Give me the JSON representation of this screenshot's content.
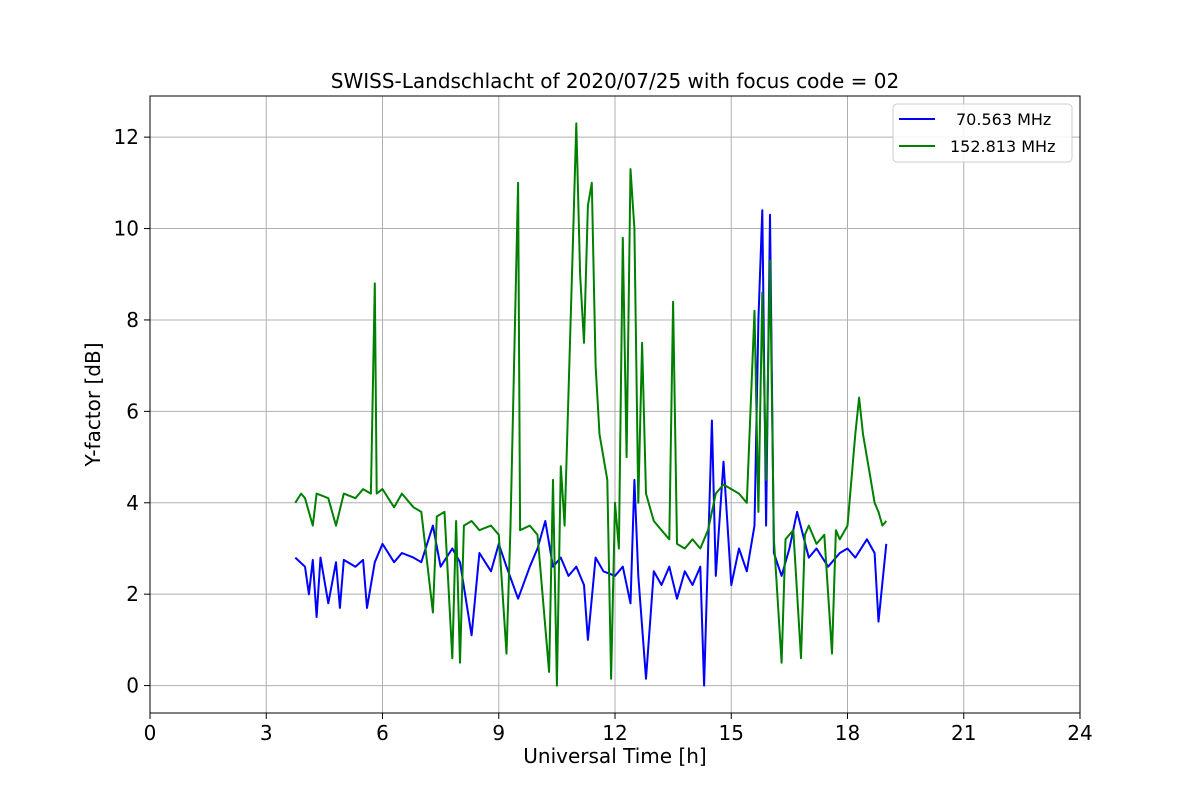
{
  "chart_data": {
    "type": "line",
    "title": "SWISS-Landschlacht of 2020/07/25 with focus code = 02",
    "xlabel": "Universal Time [h]",
    "ylabel": "Y-factor [dB]",
    "xlim": [
      0,
      24
    ],
    "ylim": [
      -0.6,
      12.9
    ],
    "xticks": [
      0,
      3,
      6,
      9,
      12,
      15,
      18,
      21,
      24
    ],
    "yticks": [
      0,
      2,
      4,
      6,
      8,
      10,
      12
    ],
    "grid": true,
    "legend_position": "top-right",
    "series": [
      {
        "name": "70.563 MHz",
        "color": "#0000ff",
        "points": [
          [
            3.75,
            2.8
          ],
          [
            4.0,
            2.6
          ],
          [
            4.1,
            2.0
          ],
          [
            4.2,
            2.75
          ],
          [
            4.3,
            1.5
          ],
          [
            4.4,
            2.8
          ],
          [
            4.6,
            1.8
          ],
          [
            4.8,
            2.7
          ],
          [
            4.9,
            1.7
          ],
          [
            5.0,
            2.75
          ],
          [
            5.3,
            2.6
          ],
          [
            5.5,
            2.75
          ],
          [
            5.6,
            1.7
          ],
          [
            5.8,
            2.7
          ],
          [
            6.0,
            3.1
          ],
          [
            6.3,
            2.7
          ],
          [
            6.5,
            2.9
          ],
          [
            6.8,
            2.8
          ],
          [
            7.0,
            2.7
          ],
          [
            7.3,
            3.5
          ],
          [
            7.5,
            2.6
          ],
          [
            7.8,
            3.0
          ],
          [
            8.0,
            2.7
          ],
          [
            8.3,
            1.1
          ],
          [
            8.5,
            2.9
          ],
          [
            8.8,
            2.5
          ],
          [
            9.0,
            3.1
          ],
          [
            9.2,
            2.6
          ],
          [
            9.5,
            1.9
          ],
          [
            9.8,
            2.6
          ],
          [
            10.0,
            3.0
          ],
          [
            10.2,
            3.6
          ],
          [
            10.4,
            2.6
          ],
          [
            10.6,
            2.8
          ],
          [
            10.8,
            2.4
          ],
          [
            11.0,
            2.6
          ],
          [
            11.2,
            2.2
          ],
          [
            11.3,
            1.0
          ],
          [
            11.5,
            2.8
          ],
          [
            11.7,
            2.5
          ],
          [
            12.0,
            2.4
          ],
          [
            12.2,
            2.6
          ],
          [
            12.4,
            1.8
          ],
          [
            12.5,
            4.5
          ],
          [
            12.6,
            2.4
          ],
          [
            12.8,
            0.15
          ],
          [
            13.0,
            2.5
          ],
          [
            13.2,
            2.2
          ],
          [
            13.4,
            2.6
          ],
          [
            13.6,
            1.9
          ],
          [
            13.8,
            2.5
          ],
          [
            14.0,
            2.2
          ],
          [
            14.2,
            2.6
          ],
          [
            14.3,
            0.0
          ],
          [
            14.5,
            5.8
          ],
          [
            14.6,
            2.4
          ],
          [
            14.8,
            4.9
          ],
          [
            15.0,
            2.2
          ],
          [
            15.2,
            3.0
          ],
          [
            15.4,
            2.5
          ],
          [
            15.6,
            3.5
          ],
          [
            15.7,
            8.0
          ],
          [
            15.8,
            10.4
          ],
          [
            15.9,
            3.5
          ],
          [
            16.0,
            10.3
          ],
          [
            16.1,
            2.9
          ],
          [
            16.3,
            2.4
          ],
          [
            16.5,
            3.0
          ],
          [
            16.7,
            3.8
          ],
          [
            17.0,
            2.8
          ],
          [
            17.2,
            3.0
          ],
          [
            17.5,
            2.6
          ],
          [
            17.8,
            2.9
          ],
          [
            18.0,
            3.0
          ],
          [
            18.2,
            2.8
          ],
          [
            18.5,
            3.2
          ],
          [
            18.7,
            2.9
          ],
          [
            18.8,
            1.4
          ],
          [
            19.0,
            3.1
          ]
        ]
      },
      {
        "name": "152.813 MHz",
        "color": "#008000",
        "points": [
          [
            3.75,
            4.0
          ],
          [
            3.9,
            4.2
          ],
          [
            4.0,
            4.1
          ],
          [
            4.2,
            3.5
          ],
          [
            4.3,
            4.2
          ],
          [
            4.6,
            4.1
          ],
          [
            4.8,
            3.5
          ],
          [
            5.0,
            4.2
          ],
          [
            5.3,
            4.1
          ],
          [
            5.5,
            4.3
          ],
          [
            5.7,
            4.2
          ],
          [
            5.8,
            8.8
          ],
          [
            5.85,
            4.2
          ],
          [
            6.0,
            4.3
          ],
          [
            6.3,
            3.9
          ],
          [
            6.5,
            4.2
          ],
          [
            6.8,
            3.9
          ],
          [
            7.0,
            3.8
          ],
          [
            7.3,
            1.6
          ],
          [
            7.4,
            3.7
          ],
          [
            7.6,
            3.8
          ],
          [
            7.8,
            0.6
          ],
          [
            7.9,
            3.6
          ],
          [
            8.0,
            0.5
          ],
          [
            8.1,
            3.5
          ],
          [
            8.3,
            3.6
          ],
          [
            8.5,
            3.4
          ],
          [
            8.8,
            3.5
          ],
          [
            9.0,
            3.3
          ],
          [
            9.2,
            0.7
          ],
          [
            9.3,
            3.4
          ],
          [
            9.5,
            11.0
          ],
          [
            9.55,
            3.4
          ],
          [
            9.8,
            3.5
          ],
          [
            10.0,
            3.3
          ],
          [
            10.3,
            0.3
          ],
          [
            10.4,
            4.5
          ],
          [
            10.5,
            0.0
          ],
          [
            10.6,
            4.8
          ],
          [
            10.7,
            3.5
          ],
          [
            10.9,
            9.3
          ],
          [
            11.0,
            12.3
          ],
          [
            11.1,
            9.0
          ],
          [
            11.2,
            7.5
          ],
          [
            11.3,
            10.5
          ],
          [
            11.4,
            11.0
          ],
          [
            11.5,
            7.0
          ],
          [
            11.6,
            5.5
          ],
          [
            11.8,
            4.5
          ],
          [
            11.9,
            0.15
          ],
          [
            12.0,
            4.0
          ],
          [
            12.1,
            3.0
          ],
          [
            12.2,
            9.8
          ],
          [
            12.3,
            5.0
          ],
          [
            12.4,
            11.3
          ],
          [
            12.5,
            10.0
          ],
          [
            12.6,
            4.0
          ],
          [
            12.7,
            7.5
          ],
          [
            12.8,
            4.2
          ],
          [
            13.0,
            3.6
          ],
          [
            13.2,
            3.4
          ],
          [
            13.4,
            3.2
          ],
          [
            13.5,
            8.4
          ],
          [
            13.6,
            3.1
          ],
          [
            13.8,
            3.0
          ],
          [
            14.0,
            3.2
          ],
          [
            14.2,
            3.0
          ],
          [
            14.4,
            3.4
          ],
          [
            14.6,
            4.2
          ],
          [
            14.8,
            4.4
          ],
          [
            15.0,
            4.3
          ],
          [
            15.2,
            4.2
          ],
          [
            15.4,
            4.0
          ],
          [
            15.6,
            8.2
          ],
          [
            15.7,
            3.8
          ],
          [
            15.8,
            8.6
          ],
          [
            15.9,
            4.5
          ],
          [
            16.0,
            9.3
          ],
          [
            16.1,
            3.2
          ],
          [
            16.3,
            0.5
          ],
          [
            16.4,
            3.2
          ],
          [
            16.6,
            3.4
          ],
          [
            16.8,
            0.6
          ],
          [
            16.9,
            3.3
          ],
          [
            17.0,
            3.5
          ],
          [
            17.2,
            3.1
          ],
          [
            17.4,
            3.3
          ],
          [
            17.6,
            0.7
          ],
          [
            17.7,
            3.4
          ],
          [
            17.8,
            3.2
          ],
          [
            18.0,
            3.5
          ],
          [
            18.1,
            4.5
          ],
          [
            18.2,
            5.5
          ],
          [
            18.3,
            6.3
          ],
          [
            18.4,
            5.5
          ],
          [
            18.5,
            5.0
          ],
          [
            18.6,
            4.5
          ],
          [
            18.7,
            4.0
          ],
          [
            18.8,
            3.8
          ],
          [
            18.9,
            3.5
          ],
          [
            19.0,
            3.6
          ]
        ]
      }
    ]
  }
}
